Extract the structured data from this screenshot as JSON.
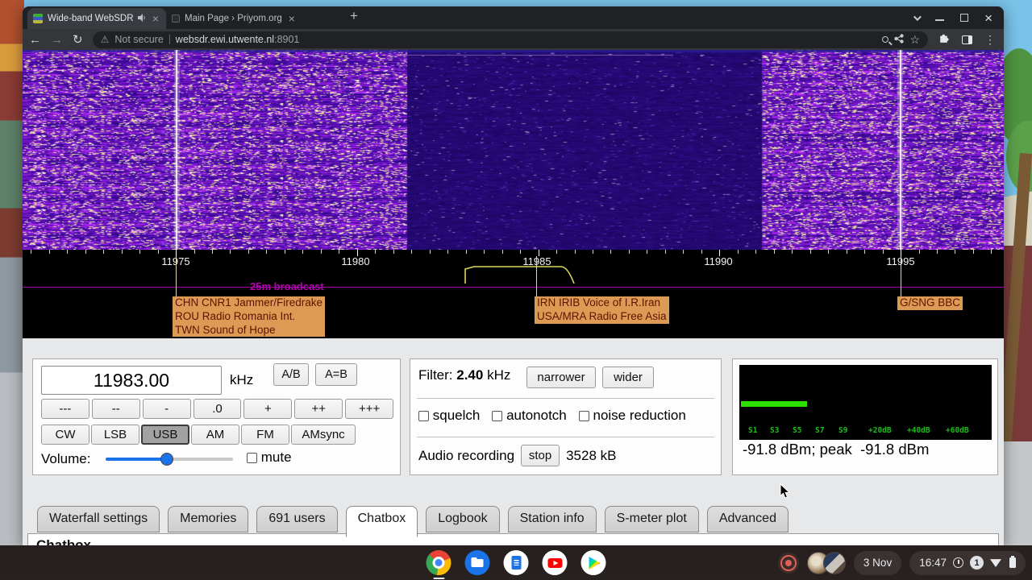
{
  "browser": {
    "tab1": {
      "title": "Wide-band WebSDR in Ensch"
    },
    "tab2": {
      "title": "Main Page › Priyom.org"
    },
    "address": {
      "security_label": "Not secure",
      "host": "websdr.ewi.utwente.nl",
      "port": ":8901"
    }
  },
  "waterfall": {
    "tick_labels": [
      "11975",
      "11980",
      "11985",
      "11990",
      "11995"
    ],
    "band_label": "25m broadcast",
    "stations": [
      {
        "line1": "CHN CNR1 Jammer/Firedrake",
        "line2": "ROU Radio Romania Int.",
        "line3": "TWN Sound of Hope"
      },
      {
        "line1": "IRN IRIB Voice of I.R.Iran",
        "line2": "USA/MRA Radio Free Asia"
      },
      {
        "line1": "G/SNG BBC"
      }
    ]
  },
  "tuner": {
    "frequency_value": "11983.00",
    "frequency_unit": "kHz",
    "ab_button": "A/B",
    "aeqb_button": "A=B",
    "steps": [
      "---",
      "--",
      "-",
      ".0",
      "+",
      "++",
      "+++"
    ],
    "modes": [
      "CW",
      "LSB",
      "USB",
      "AM",
      "FM",
      "AMsync"
    ],
    "active_mode": "USB",
    "volume_label": "Volume:",
    "mute_label": "mute"
  },
  "filter": {
    "label": "Filter:",
    "width_value": "2.40",
    "width_unit": "kHz",
    "narrower_button": "narrower",
    "wider_button": "wider",
    "squelch_label": "squelch",
    "autonotch_label": "autonotch",
    "noise_reduction_label": "noise reduction",
    "audio_recording_label": "Audio recording",
    "stop_button": "stop",
    "recording_size": "3528 kB"
  },
  "smeter": {
    "scale_labels": [
      "S1",
      "S3",
      "S5",
      "S7",
      "S9",
      "+20dB",
      "+40dB",
      "+60dB"
    ],
    "reading": "-91.8 dBm; peak  -91.8 dBm"
  },
  "page_tabs": [
    "Waterfall settings",
    "Memories",
    "691 users",
    "Chatbox",
    "Logbook",
    "Station info",
    "S-meter plot",
    "Advanced"
  ],
  "chat": {
    "heading": "Chatbox"
  },
  "shelf": {
    "date": "3 Nov",
    "time": "16:47",
    "notification_count": "1"
  }
}
